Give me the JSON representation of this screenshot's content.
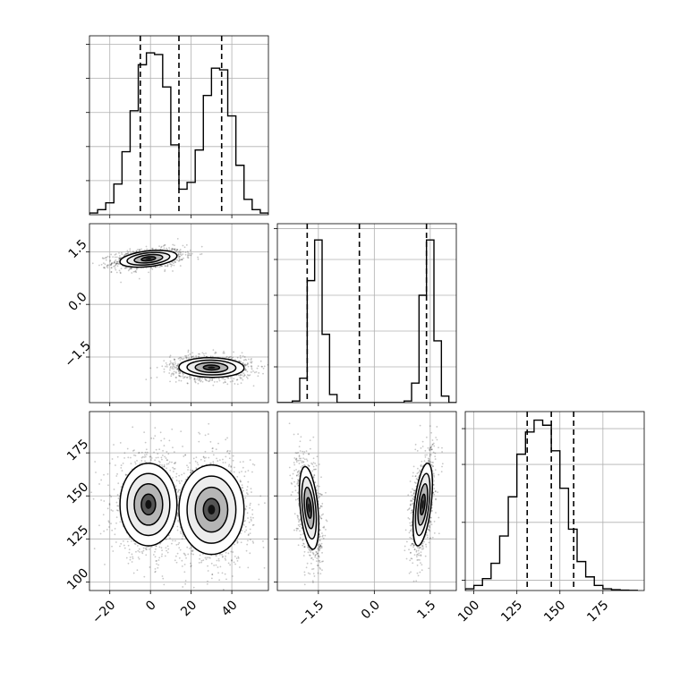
{
  "chart_data": {
    "type": "corner",
    "grid": true,
    "panels": [
      {
        "id": "p0_hist",
        "kind": "hist",
        "xlim": [
          -30,
          58
        ],
        "quantiles": [
          -5,
          14,
          35
        ],
        "bin_edges": [
          -30,
          -26,
          -22,
          -18,
          -14,
          -10,
          -6,
          -2,
          2,
          6,
          10,
          14,
          18,
          22,
          26,
          30,
          34,
          38,
          42,
          46,
          50,
          54,
          58
        ],
        "counts": [
          0.01,
          0.03,
          0.07,
          0.18,
          0.37,
          0.61,
          0.88,
          0.95,
          0.94,
          0.75,
          0.41,
          0.15,
          0.19,
          0.38,
          0.7,
          0.86,
          0.85,
          0.58,
          0.29,
          0.09,
          0.03,
          0.01
        ],
        "ylim": [
          0,
          1.05
        ],
        "x_ticks": [],
        "y_ticks": []
      },
      {
        "id": "p1_scatter",
        "kind": "density",
        "xlim": [
          -30,
          58
        ],
        "ylim": [
          -2.8,
          2.3
        ],
        "x_ticks": [],
        "y_ticks": [
          {
            "v": 1.5,
            "label": "1.5"
          },
          {
            "v": 0.0,
            "label": "0.0"
          },
          {
            "v": -1.5,
            "label": "−1.5"
          }
        ],
        "clusters": [
          {
            "cx": -1,
            "cy": 1.3,
            "sx": 7,
            "sy": 0.12,
            "rho": 0.35
          },
          {
            "cx": 30,
            "cy": -1.8,
            "sx": 8,
            "sy": 0.14,
            "rho": -0.05
          }
        ]
      },
      {
        "id": "p2_hist",
        "kind": "hist",
        "xlim": [
          -2.6,
          2.2
        ],
        "quantiles": [
          -1.8,
          -0.4,
          1.4
        ],
        "bin_edges": [
          -2.6,
          -2.4,
          -2.2,
          -2.0,
          -1.8,
          -1.6,
          -1.4,
          -1.2,
          -1.0,
          -0.8,
          -0.6,
          -0.4,
          -0.2,
          0.0,
          0.2,
          0.4,
          0.6,
          0.8,
          1.0,
          1.2,
          1.4,
          1.6,
          1.8,
          2.0,
          2.2
        ],
        "counts": [
          0,
          0,
          0.01,
          0.15,
          0.75,
          1.0,
          0.42,
          0.05,
          0,
          0,
          0,
          0,
          0,
          0,
          0,
          0,
          0,
          0.01,
          0.12,
          0.66,
          1.0,
          0.38,
          0.04,
          0
        ],
        "ylim": [
          0,
          1.1
        ],
        "x_ticks": [],
        "y_ticks": []
      },
      {
        "id": "p3_scatter",
        "kind": "density",
        "xlim": [
          -30,
          58
        ],
        "ylim": [
          95,
          199
        ],
        "x_ticks": [
          {
            "v": -20,
            "label": "−20"
          },
          {
            "v": 0,
            "label": "0"
          },
          {
            "v": 20,
            "label": "20"
          },
          {
            "v": 40,
            "label": "40"
          }
        ],
        "y_ticks": [
          {
            "v": 175,
            "label": "175"
          },
          {
            "v": 150,
            "label": "150"
          },
          {
            "v": 125,
            "label": "125"
          },
          {
            "v": 100,
            "label": "100"
          }
        ],
        "clusters": [
          {
            "cx": -1,
            "cy": 145,
            "sx": 7,
            "sy": 12,
            "rho": 0.0
          },
          {
            "cx": 30,
            "cy": 142,
            "sx": 8,
            "sy": 13,
            "rho": 0.0
          }
        ]
      },
      {
        "id": "p4_scatter",
        "kind": "density",
        "xlim": [
          -2.6,
          2.2
        ],
        "ylim": [
          95,
          199
        ],
        "x_ticks": [
          {
            "v": -1.5,
            "label": "−1.5"
          },
          {
            "v": 0.0,
            "label": "0.0"
          },
          {
            "v": 1.5,
            "label": "1.5"
          }
        ],
        "y_ticks": [],
        "clusters": [
          {
            "cx": -1.75,
            "cy": 143,
            "sx": 0.13,
            "sy": 12,
            "rho": -0.4
          },
          {
            "cx": 1.3,
            "cy": 145,
            "sx": 0.13,
            "sy": 12,
            "rho": 0.5
          }
        ]
      },
      {
        "id": "p5_hist",
        "kind": "hist",
        "xlim": [
          95,
          199
        ],
        "quantiles": [
          131,
          145,
          158
        ],
        "bin_edges": [
          95,
          100,
          105,
          110,
          115,
          120,
          125,
          130,
          135,
          140,
          145,
          150,
          155,
          160,
          165,
          170,
          175,
          180,
          185,
          190,
          195
        ],
        "counts": [
          0.01,
          0.03,
          0.07,
          0.16,
          0.32,
          0.55,
          0.8,
          0.93,
          1.0,
          0.97,
          0.82,
          0.6,
          0.36,
          0.17,
          0.08,
          0.03,
          0.01,
          0.005,
          0.002,
          0.001
        ],
        "ylim": [
          0,
          1.05
        ],
        "x_ticks": [
          {
            "v": 100,
            "label": "100"
          },
          {
            "v": 125,
            "label": "125"
          },
          {
            "v": 150,
            "label": "150"
          },
          {
            "v": 175,
            "label": "175"
          }
        ],
        "y_ticks": []
      }
    ]
  }
}
